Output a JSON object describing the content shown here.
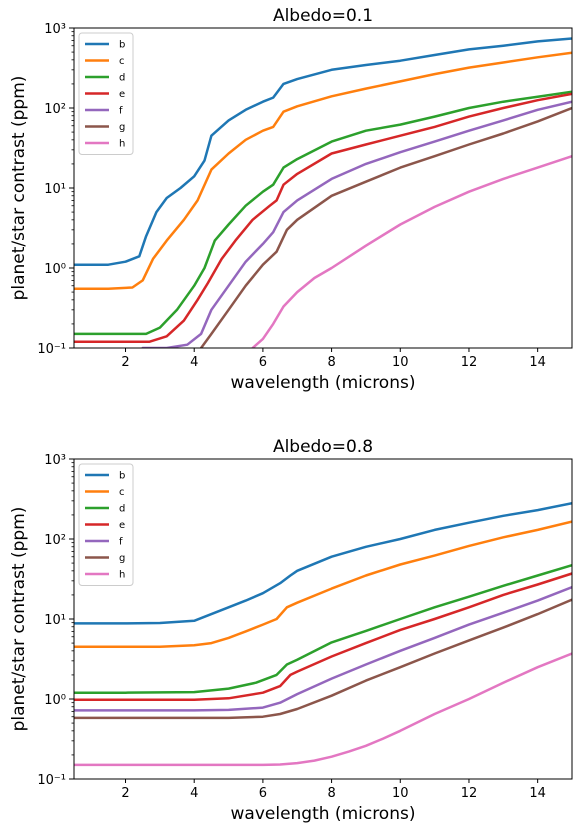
{
  "chart_data": [
    {
      "type": "line",
      "title": "Albedo=0.1",
      "xlabel": "wavelength (microns)",
      "ylabel": "planet/star contrast (ppm)",
      "xlim": [
        0.5,
        15
      ],
      "ylim": [
        0.1,
        1000
      ],
      "yscale": "log",
      "xticks": [
        "2",
        "4",
        "6",
        "8",
        "10",
        "12",
        "14"
      ],
      "yticks": [
        "10⁻¹",
        "10⁰",
        "10¹",
        "10²",
        "10³"
      ],
      "legend": "top-left",
      "series": [
        {
          "name": "b",
          "color": "#1f77b4",
          "points": [
            [
              0.5,
              1.1
            ],
            [
              1.5,
              1.1
            ],
            [
              2.0,
              1.2
            ],
            [
              2.4,
              1.4
            ],
            [
              2.6,
              2.5
            ],
            [
              2.9,
              5
            ],
            [
              3.2,
              7.5
            ],
            [
              3.6,
              10
            ],
            [
              4.0,
              14
            ],
            [
              4.3,
              22
            ],
            [
              4.5,
              45
            ],
            [
              5.0,
              70
            ],
            [
              5.5,
              95
            ],
            [
              6.0,
              120
            ],
            [
              6.3,
              135
            ],
            [
              6.6,
              200
            ],
            [
              7.0,
              230
            ],
            [
              8.0,
              300
            ],
            [
              9.0,
              345
            ],
            [
              10.0,
              390
            ],
            [
              11.0,
              460
            ],
            [
              12.0,
              540
            ],
            [
              13.0,
              600
            ],
            [
              14.0,
              680
            ],
            [
              15.0,
              740
            ]
          ]
        },
        {
          "name": "c",
          "color": "#ff7f0e",
          "points": [
            [
              0.5,
              0.55
            ],
            [
              1.5,
              0.55
            ],
            [
              2.2,
              0.57
            ],
            [
              2.5,
              0.7
            ],
            [
              2.8,
              1.3
            ],
            [
              3.2,
              2.2
            ],
            [
              3.7,
              4
            ],
            [
              4.1,
              7
            ],
            [
              4.5,
              17
            ],
            [
              5.0,
              27
            ],
            [
              5.5,
              40
            ],
            [
              6.0,
              52
            ],
            [
              6.3,
              58
            ],
            [
              6.6,
              90
            ],
            [
              7.0,
              105
            ],
            [
              8.0,
              140
            ],
            [
              9.0,
              175
            ],
            [
              10.0,
              215
            ],
            [
              11.0,
              265
            ],
            [
              12.0,
              320
            ],
            [
              13.0,
              370
            ],
            [
              14.0,
              430
            ],
            [
              15.0,
              490
            ]
          ]
        },
        {
          "name": "d",
          "color": "#2ca02c",
          "points": [
            [
              0.5,
              0.15
            ],
            [
              1.5,
              0.15
            ],
            [
              2.6,
              0.15
            ],
            [
              3.0,
              0.18
            ],
            [
              3.5,
              0.3
            ],
            [
              4.0,
              0.6
            ],
            [
              4.3,
              1.0
            ],
            [
              4.6,
              2.2
            ],
            [
              5.0,
              3.5
            ],
            [
              5.5,
              6
            ],
            [
              6.0,
              9
            ],
            [
              6.3,
              11
            ],
            [
              6.6,
              18
            ],
            [
              7.0,
              23
            ],
            [
              8.0,
              38
            ],
            [
              9.0,
              52
            ],
            [
              10.0,
              62
            ],
            [
              11.0,
              78
            ],
            [
              12.0,
              100
            ],
            [
              13.0,
              120
            ],
            [
              14.0,
              138
            ],
            [
              15.0,
              160
            ]
          ]
        },
        {
          "name": "e",
          "color": "#d62728",
          "points": [
            [
              0.5,
              0.12
            ],
            [
              1.5,
              0.12
            ],
            [
              2.7,
              0.12
            ],
            [
              3.2,
              0.14
            ],
            [
              3.7,
              0.22
            ],
            [
              4.1,
              0.4
            ],
            [
              4.4,
              0.65
            ],
            [
              4.8,
              1.3
            ],
            [
              5.2,
              2.2
            ],
            [
              5.7,
              4
            ],
            [
              6.2,
              6
            ],
            [
              6.4,
              7
            ],
            [
              6.6,
              11
            ],
            [
              7.0,
              15
            ],
            [
              8.0,
              27
            ],
            [
              9.0,
              35
            ],
            [
              10.0,
              45
            ],
            [
              11.0,
              58
            ],
            [
              12.0,
              78
            ],
            [
              13.0,
              100
            ],
            [
              14.0,
              125
            ],
            [
              15.0,
              150
            ]
          ]
        },
        {
          "name": "f",
          "color": "#9467bd",
          "points": [
            [
              2.5,
              0.1
            ],
            [
              3.2,
              0.1
            ],
            [
              3.8,
              0.11
            ],
            [
              4.2,
              0.15
            ],
            [
              4.5,
              0.3
            ],
            [
              5.0,
              0.6
            ],
            [
              5.5,
              1.2
            ],
            [
              6.0,
              2.0
            ],
            [
              6.3,
              2.8
            ],
            [
              6.6,
              5
            ],
            [
              7.0,
              7
            ],
            [
              8.0,
              13
            ],
            [
              9.0,
              20
            ],
            [
              10.0,
              28
            ],
            [
              11.0,
              38
            ],
            [
              12.0,
              52
            ],
            [
              13.0,
              70
            ],
            [
              14.0,
              95
            ],
            [
              15.0,
              120
            ]
          ]
        },
        {
          "name": "g",
          "color": "#8c564b",
          "points": [
            [
              4.2,
              0.1
            ],
            [
              4.5,
              0.15
            ],
            [
              5.0,
              0.3
            ],
            [
              5.5,
              0.6
            ],
            [
              6.0,
              1.1
            ],
            [
              6.4,
              1.6
            ],
            [
              6.7,
              3
            ],
            [
              7.0,
              4
            ],
            [
              8.0,
              8
            ],
            [
              9.0,
              12
            ],
            [
              10.0,
              18
            ],
            [
              11.0,
              25
            ],
            [
              12.0,
              35
            ],
            [
              13.0,
              48
            ],
            [
              14.0,
              68
            ],
            [
              15.0,
              100
            ]
          ]
        },
        {
          "name": "h",
          "color": "#e377c2",
          "points": [
            [
              5.7,
              0.1
            ],
            [
              6.0,
              0.13
            ],
            [
              6.3,
              0.2
            ],
            [
              6.6,
              0.33
            ],
            [
              7.0,
              0.5
            ],
            [
              7.5,
              0.75
            ],
            [
              8.0,
              1.0
            ],
            [
              9.0,
              1.9
            ],
            [
              10.0,
              3.5
            ],
            [
              11.0,
              5.8
            ],
            [
              12.0,
              9
            ],
            [
              13.0,
              13
            ],
            [
              14.0,
              18
            ],
            [
              15.0,
              25
            ]
          ]
        }
      ]
    },
    {
      "type": "line",
      "title": "Albedo=0.8",
      "xlabel": "wavelength (microns)",
      "ylabel": "planet/star contrast (ppm)",
      "xlim": [
        0.5,
        15
      ],
      "ylim": [
        0.1,
        1000
      ],
      "yscale": "log",
      "xticks": [
        "2",
        "4",
        "6",
        "8",
        "10",
        "12",
        "14"
      ],
      "yticks": [
        "10⁻¹",
        "10⁰",
        "10¹",
        "10²",
        "10³"
      ],
      "legend": "top-left",
      "series": [
        {
          "name": "b",
          "color": "#1f77b4",
          "points": [
            [
              0.5,
              8.8
            ],
            [
              2.0,
              8.8
            ],
            [
              3.0,
              8.9
            ],
            [
              4.0,
              9.5
            ],
            [
              4.5,
              11.5
            ],
            [
              5.0,
              14
            ],
            [
              5.5,
              17
            ],
            [
              6.0,
              21
            ],
            [
              6.5,
              28
            ],
            [
              6.8,
              35
            ],
            [
              7.0,
              40
            ],
            [
              8.0,
              60
            ],
            [
              9.0,
              80
            ],
            [
              10.0,
              100
            ],
            [
              11.0,
              130
            ],
            [
              12.0,
              160
            ],
            [
              13.0,
              195
            ],
            [
              14.0,
              230
            ],
            [
              15.0,
              280
            ]
          ]
        },
        {
          "name": "c",
          "color": "#ff7f0e",
          "points": [
            [
              0.5,
              4.5
            ],
            [
              2.0,
              4.5
            ],
            [
              3.0,
              4.5
            ],
            [
              4.0,
              4.7
            ],
            [
              4.5,
              5.0
            ],
            [
              5.0,
              5.8
            ],
            [
              5.5,
              7
            ],
            [
              6.0,
              8.5
            ],
            [
              6.4,
              10
            ],
            [
              6.7,
              14
            ],
            [
              7.0,
              16
            ],
            [
              8.0,
              24
            ],
            [
              9.0,
              35
            ],
            [
              10.0,
              48
            ],
            [
              11.0,
              62
            ],
            [
              12.0,
              82
            ],
            [
              13.0,
              105
            ],
            [
              14.0,
              130
            ],
            [
              15.0,
              165
            ]
          ]
        },
        {
          "name": "d",
          "color": "#2ca02c",
          "points": [
            [
              0.5,
              1.2
            ],
            [
              2.0,
              1.2
            ],
            [
              4.0,
              1.22
            ],
            [
              5.0,
              1.35
            ],
            [
              5.8,
              1.6
            ],
            [
              6.4,
              2.0
            ],
            [
              6.7,
              2.7
            ],
            [
              7.0,
              3.1
            ],
            [
              8.0,
              5.1
            ],
            [
              9.0,
              7.1
            ],
            [
              10.0,
              10
            ],
            [
              11.0,
              14
            ],
            [
              12.0,
              19
            ],
            [
              13.0,
              26
            ],
            [
              14.0,
              35
            ],
            [
              15.0,
              47
            ]
          ]
        },
        {
          "name": "e",
          "color": "#d62728",
          "points": [
            [
              0.5,
              0.98
            ],
            [
              2.0,
              0.98
            ],
            [
              4.0,
              0.98
            ],
            [
              5.0,
              1.02
            ],
            [
              6.0,
              1.2
            ],
            [
              6.5,
              1.45
            ],
            [
              6.8,
              2.0
            ],
            [
              7.0,
              2.2
            ],
            [
              8.0,
              3.4
            ],
            [
              9.0,
              5.0
            ],
            [
              10.0,
              7.3
            ],
            [
              11.0,
              10
            ],
            [
              12.0,
              14
            ],
            [
              13.0,
              20
            ],
            [
              14.0,
              27
            ],
            [
              15.0,
              37
            ]
          ]
        },
        {
          "name": "f",
          "color": "#9467bd",
          "points": [
            [
              0.5,
              0.72
            ],
            [
              2.0,
              0.72
            ],
            [
              4.0,
              0.72
            ],
            [
              5.0,
              0.73
            ],
            [
              6.0,
              0.78
            ],
            [
              6.5,
              0.9
            ],
            [
              7.0,
              1.15
            ],
            [
              8.0,
              1.8
            ],
            [
              9.0,
              2.7
            ],
            [
              10.0,
              4.0
            ],
            [
              11.0,
              5.8
            ],
            [
              12.0,
              8.5
            ],
            [
              13.0,
              12
            ],
            [
              14.0,
              17
            ],
            [
              15.0,
              25
            ]
          ]
        },
        {
          "name": "g",
          "color": "#8c564b",
          "points": [
            [
              0.5,
              0.58
            ],
            [
              2.0,
              0.58
            ],
            [
              4.0,
              0.58
            ],
            [
              5.0,
              0.58
            ],
            [
              6.0,
              0.6
            ],
            [
              6.5,
              0.65
            ],
            [
              7.0,
              0.75
            ],
            [
              8.0,
              1.1
            ],
            [
              9.0,
              1.7
            ],
            [
              10.0,
              2.5
            ],
            [
              11.0,
              3.7
            ],
            [
              12.0,
              5.4
            ],
            [
              13.0,
              7.8
            ],
            [
              14.0,
              11.5
            ],
            [
              15.0,
              17.5
            ]
          ]
        },
        {
          "name": "h",
          "color": "#e377c2",
          "points": [
            [
              0.5,
              0.15
            ],
            [
              2.0,
              0.15
            ],
            [
              4.0,
              0.15
            ],
            [
              6.0,
              0.15
            ],
            [
              6.5,
              0.152
            ],
            [
              7.0,
              0.158
            ],
            [
              7.5,
              0.17
            ],
            [
              8.0,
              0.19
            ],
            [
              8.5,
              0.22
            ],
            [
              9.0,
              0.26
            ],
            [
              9.5,
              0.32
            ],
            [
              10.0,
              0.4
            ],
            [
              11.0,
              0.65
            ],
            [
              12.0,
              1.0
            ],
            [
              13.0,
              1.6
            ],
            [
              14.0,
              2.5
            ],
            [
              15.0,
              3.7
            ]
          ]
        }
      ]
    }
  ]
}
